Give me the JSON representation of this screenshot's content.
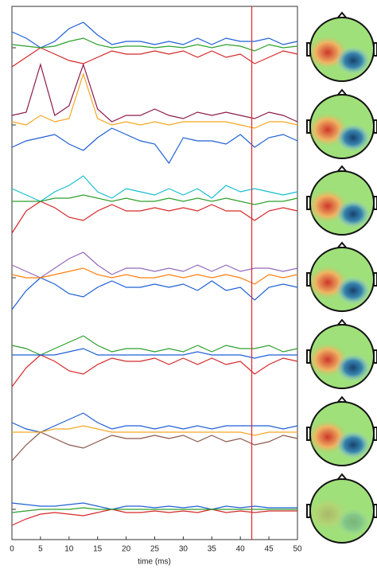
{
  "chart_data": {
    "type": "line",
    "x_label": "time (ms)",
    "xlim": [
      0,
      50
    ],
    "xticks": [
      0,
      5,
      10,
      15,
      20,
      25,
      30,
      35,
      40,
      45,
      50
    ],
    "cursor": 42,
    "cursor_color": "#e0262b",
    "x": [
      0,
      2.5,
      5,
      7.5,
      10,
      12.5,
      15,
      17.5,
      20,
      22.5,
      25,
      27.5,
      30,
      32.5,
      35,
      37.5,
      40,
      42.5,
      45,
      47.5,
      50
    ],
    "panels": [
      {
        "series": [
          {
            "color": "#1f5fd6",
            "values": [
              0.5,
              0.3,
              0.0,
              0.2,
              0.6,
              0.8,
              0.4,
              0.1,
              0.2,
              0.2,
              0.1,
              0.2,
              0.1,
              0.3,
              0.1,
              0.3,
              0.2,
              0.2,
              0.3,
              0.1,
              0.2
            ]
          },
          {
            "color": "#d62728",
            "values": [
              -0.6,
              -0.3,
              0.0,
              -0.2,
              -0.4,
              -0.5,
              -0.3,
              -0.1,
              -0.2,
              -0.2,
              -0.1,
              -0.2,
              -0.1,
              -0.3,
              -0.1,
              -0.3,
              -0.2,
              -0.5,
              -0.3,
              -0.1,
              -0.2
            ]
          },
          {
            "color": "#2ca02c",
            "values": [
              0.1,
              0.05,
              0.0,
              0.05,
              0.2,
              0.3,
              0.1,
              0.0,
              0.05,
              0.05,
              0.0,
              0.05,
              0.0,
              0.1,
              0.0,
              0.1,
              0.05,
              -0.1,
              0.1,
              0.0,
              0.05
            ]
          }
        ]
      },
      {
        "series": [
          {
            "color": "#8c1a4b",
            "values": [
              0.3,
              0.4,
              1.9,
              0.3,
              0.6,
              1.9,
              0.5,
              0.1,
              0.3,
              0.3,
              0.5,
              0.3,
              0.2,
              0.4,
              0.3,
              0.4,
              0.3,
              0.2,
              0.4,
              0.3,
              0.1
            ]
          },
          {
            "color": "#1f5fd6",
            "values": [
              -0.7,
              -0.5,
              -0.4,
              -0.3,
              -0.6,
              -0.8,
              -0.4,
              -0.1,
              -0.3,
              -0.5,
              -0.6,
              -1.2,
              -0.4,
              -0.5,
              -0.5,
              -0.6,
              -0.3,
              -0.7,
              -0.4,
              -0.3,
              -0.5
            ]
          },
          {
            "color": "#f5a623",
            "values": [
              0.1,
              0.0,
              0.3,
              0.1,
              0.2,
              1.6,
              0.2,
              0.0,
              0.1,
              0.0,
              0.1,
              0.0,
              0.1,
              0.1,
              0.1,
              0.1,
              0.0,
              -0.1,
              0.1,
              0.1,
              0.0
            ]
          }
        ]
      },
      {
        "series": [
          {
            "color": "#17becf",
            "values": [
              0.4,
              0.2,
              0.0,
              0.3,
              0.5,
              0.8,
              0.3,
              0.1,
              0.4,
              0.3,
              0.2,
              0.4,
              0.2,
              0.4,
              0.1,
              0.5,
              0.3,
              0.4,
              0.3,
              0.2,
              0.3
            ]
          },
          {
            "color": "#d62728",
            "values": [
              -1.0,
              -0.3,
              0.0,
              -0.2,
              -0.5,
              -0.6,
              -0.3,
              -0.1,
              -0.3,
              -0.3,
              -0.2,
              -0.3,
              -0.2,
              -0.3,
              -0.1,
              -0.3,
              -0.3,
              -0.6,
              -0.3,
              -0.2,
              -0.3
            ]
          },
          {
            "color": "#2ca02c",
            "values": [
              0.0,
              0.0,
              0.0,
              0.1,
              0.1,
              0.2,
              0.1,
              0.0,
              0.1,
              0.0,
              0.0,
              0.1,
              0.0,
              0.1,
              0.0,
              0.1,
              0.0,
              -0.1,
              0.0,
              0.0,
              0.1
            ]
          }
        ]
      },
      {
        "series": [
          {
            "color": "#9467bd",
            "values": [
              0.4,
              0.2,
              0.0,
              0.3,
              0.6,
              0.8,
              0.4,
              0.1,
              0.3,
              0.3,
              0.2,
              0.3,
              0.2,
              0.4,
              0.2,
              0.4,
              0.2,
              0.3,
              0.3,
              0.2,
              0.3
            ]
          },
          {
            "color": "#1f5fd6",
            "values": [
              -1.0,
              -0.4,
              0.0,
              -0.2,
              -0.5,
              -0.6,
              -0.3,
              -0.1,
              -0.3,
              -0.3,
              -0.2,
              -0.3,
              -0.2,
              -0.4,
              -0.1,
              -0.4,
              -0.3,
              -0.7,
              -0.3,
              -0.2,
              -0.3
            ]
          },
          {
            "color": "#ff7f0e",
            "values": [
              0.1,
              0.0,
              0.0,
              0.1,
              0.2,
              0.3,
              0.1,
              0.0,
              0.1,
              0.0,
              0.0,
              0.1,
              0.0,
              0.1,
              0.0,
              0.1,
              0.0,
              -0.2,
              0.1,
              0.0,
              0.1
            ]
          }
        ]
      },
      {
        "series": [
          {
            "color": "#2ca02c",
            "values": [
              0.3,
              0.2,
              0.0,
              0.2,
              0.4,
              0.6,
              0.3,
              0.1,
              0.2,
              0.2,
              0.1,
              0.2,
              0.1,
              0.3,
              0.1,
              0.3,
              0.2,
              0.2,
              0.3,
              0.1,
              0.2
            ]
          },
          {
            "color": "#d62728",
            "values": [
              -1.0,
              -0.4,
              0.0,
              -0.2,
              -0.5,
              -0.6,
              -0.3,
              -0.1,
              -0.2,
              -0.2,
              -0.1,
              -0.3,
              -0.1,
              -0.3,
              -0.1,
              -0.3,
              -0.2,
              -0.6,
              -0.3,
              -0.1,
              -0.2
            ]
          },
          {
            "color": "#1f5fd6",
            "values": [
              0.0,
              0.0,
              0.0,
              0.0,
              0.1,
              0.2,
              0.0,
              0.0,
              0.0,
              0.0,
              0.0,
              0.0,
              0.0,
              0.1,
              0.0,
              0.0,
              0.0,
              -0.1,
              0.0,
              0.0,
              0.0
            ]
          }
        ]
      },
      {
        "series": [
          {
            "color": "#1f5fd6",
            "values": [
              0.3,
              0.1,
              0.0,
              0.2,
              0.4,
              0.6,
              0.3,
              0.1,
              0.2,
              0.2,
              0.1,
              0.2,
              0.1,
              0.2,
              0.1,
              0.2,
              0.2,
              0.2,
              0.2,
              0.1,
              0.2
            ]
          },
          {
            "color": "#8c564b",
            "values": [
              -0.9,
              -0.4,
              0.0,
              -0.2,
              -0.4,
              -0.5,
              -0.3,
              -0.1,
              -0.2,
              -0.2,
              -0.1,
              -0.2,
              -0.1,
              -0.3,
              -0.1,
              -0.3,
              -0.2,
              -0.4,
              -0.3,
              -0.1,
              -0.2
            ]
          },
          {
            "color": "#f5a623",
            "values": [
              0.0,
              0.0,
              0.0,
              0.1,
              0.1,
              0.2,
              0.1,
              0.0,
              0.0,
              0.0,
              0.0,
              0.0,
              0.0,
              0.0,
              0.0,
              0.0,
              0.0,
              -0.1,
              0.0,
              0.0,
              0.0
            ]
          }
        ]
      },
      {
        "series": [
          {
            "color": "#1f5fd6",
            "values": [
              0.2,
              0.15,
              0.1,
              0.1,
              0.15,
              0.2,
              0.1,
              0.0,
              0.1,
              0.1,
              0.05,
              0.1,
              0.05,
              0.1,
              0.0,
              0.1,
              0.05,
              0.1,
              0.05,
              0.05,
              0.05
            ]
          },
          {
            "color": "#d62728",
            "values": [
              -0.5,
              -0.3,
              -0.15,
              -0.1,
              -0.15,
              -0.2,
              -0.1,
              0.0,
              -0.1,
              -0.1,
              -0.05,
              -0.1,
              -0.05,
              -0.1,
              0.0,
              -0.1,
              -0.05,
              -0.1,
              -0.05,
              -0.05,
              -0.05
            ]
          },
          {
            "color": "#2ca02c",
            "values": [
              -0.1,
              -0.05,
              0.0,
              0.0,
              0.0,
              0.05,
              0.0,
              0.0,
              0.0,
              0.0,
              0.0,
              0.0,
              0.0,
              0.0,
              0.0,
              0.0,
              0.0,
              0.0,
              0.0,
              0.0,
              0.0
            ]
          }
        ]
      }
    ]
  }
}
